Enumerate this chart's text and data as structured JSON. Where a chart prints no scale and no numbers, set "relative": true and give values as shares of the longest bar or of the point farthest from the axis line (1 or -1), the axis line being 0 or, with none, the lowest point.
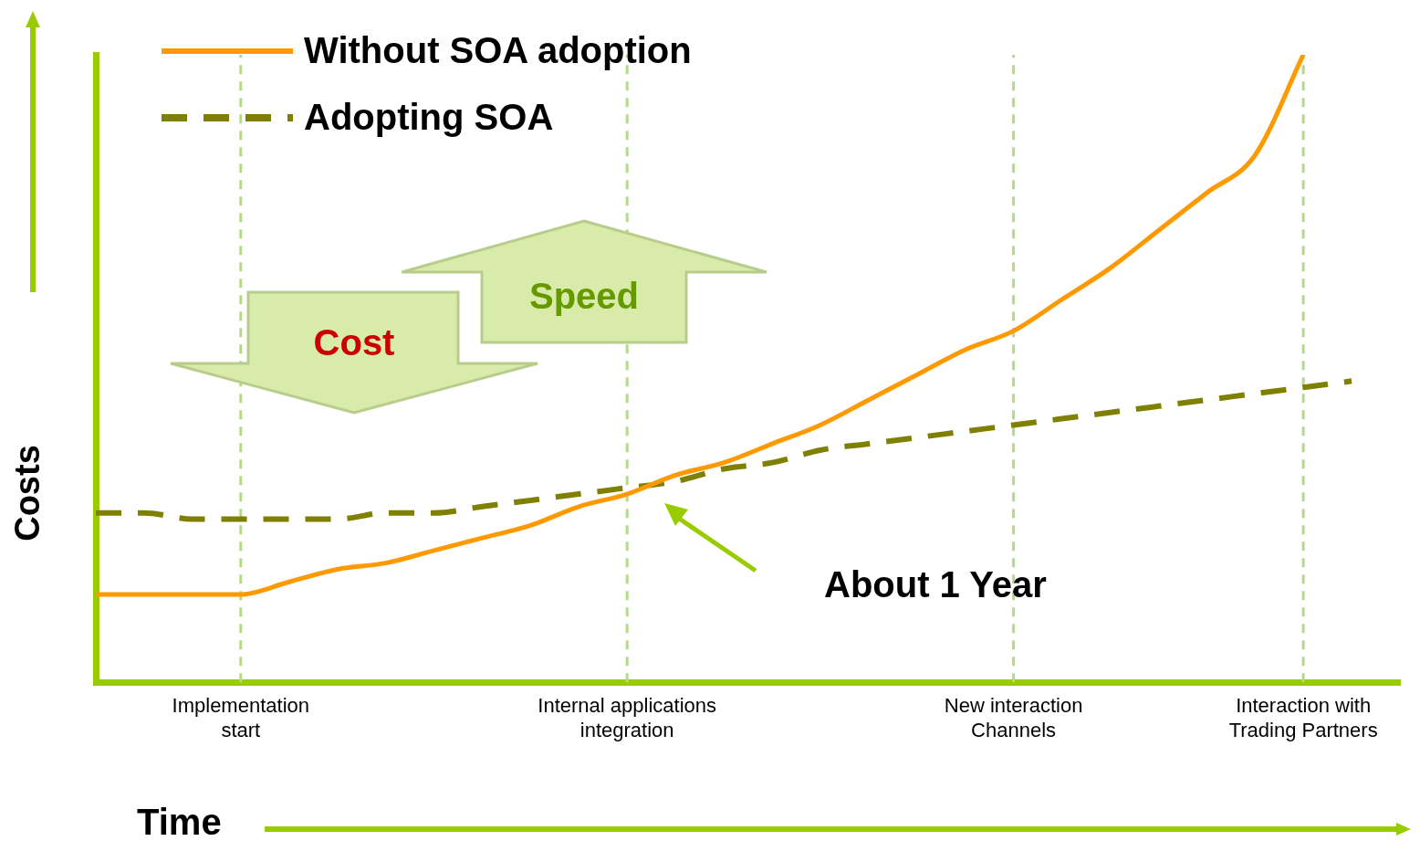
{
  "chart_data": {
    "type": "line",
    "relative": true,
    "xlabel": "Time",
    "ylabel": "Costs",
    "categories": [
      null,
      null,
      null,
      "Implementation start",
      null,
      null,
      null,
      null,
      null,
      null,
      null,
      "Internal applications integration",
      null,
      null,
      null,
      null,
      null,
      null,
      null,
      "New interaction Channels",
      null,
      null,
      null,
      null,
      null,
      "Interaction with Trading Partners",
      null,
      null
    ],
    "legend": "top left",
    "marker": "none",
    "series": [
      {
        "name": "Without SOA adoption",
        "color": "#ff9900",
        "line_style": "solid",
        "values": [
          0.14,
          0.14,
          0.14,
          0.14,
          0.16,
          0.18,
          0.19,
          0.21,
          0.23,
          0.25,
          0.28,
          0.3,
          0.33,
          0.35,
          0.38,
          0.41,
          0.45,
          0.49,
          0.53,
          0.56,
          0.61,
          0.66,
          0.72,
          0.78,
          0.84,
          1,
          null,
          null
        ]
      },
      {
        "name": "Adopting SOA",
        "color": "#808000",
        "line_style": "dashed",
        "values": [
          0.27,
          0.27,
          0.26,
          0.26,
          0.26,
          0.26,
          0.27,
          0.27,
          0.28,
          0.29,
          0.3,
          0.31,
          0.32,
          0.34,
          0.35,
          0.37,
          0.38,
          0.39,
          0.4,
          0.41,
          0.42,
          0.43,
          0.44,
          0.45,
          0.46,
          0.47,
          0.48,
          null
        ]
      }
    ],
    "ref_lines": [
      {
        "axis": "x",
        "value": "Implementation start",
        "color": "#b5d98a",
        "line_style": "dashed"
      },
      {
        "axis": "x",
        "value": "Internal applications integration",
        "color": "#b5d98a",
        "line_style": "dashed"
      },
      {
        "axis": "x",
        "value": "New interaction Channels",
        "color": "#b5d98a",
        "line_style": "dashed"
      },
      {
        "axis": "x",
        "value": "Interaction with Trading Partners",
        "color": "#b5d98a",
        "line_style": "dashed"
      }
    ],
    "annotations": [
      "Cost",
      "Speed",
      "About 1 Year"
    ]
  }
}
